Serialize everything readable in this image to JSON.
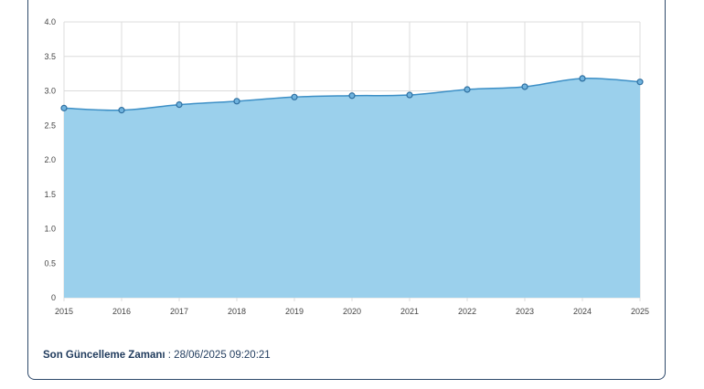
{
  "chart_data": {
    "type": "area",
    "x": [
      "2015",
      "2016",
      "2017",
      "2018",
      "2019",
      "2020",
      "2021",
      "2022",
      "2023",
      "2024",
      "2025"
    ],
    "values": [
      2.75,
      2.72,
      2.8,
      2.85,
      2.91,
      2.93,
      2.94,
      3.02,
      3.06,
      3.18,
      3.13
    ],
    "y_ticks": [
      "0",
      "0.5",
      "1.0",
      "1.5",
      "2.0",
      "2.5",
      "3.0",
      "3.5",
      "4.0"
    ],
    "ylim": [
      0,
      4
    ],
    "grid": true,
    "colors": {
      "fill": "#9bd0ec",
      "line": "#3c8fc6",
      "marker": "#3c8fc6",
      "grid": "#dcdcdc"
    }
  },
  "footer": {
    "label": "Son Güncelleme Zamanı",
    "separator": " : ",
    "value": "28/06/2025 09:20:21"
  }
}
